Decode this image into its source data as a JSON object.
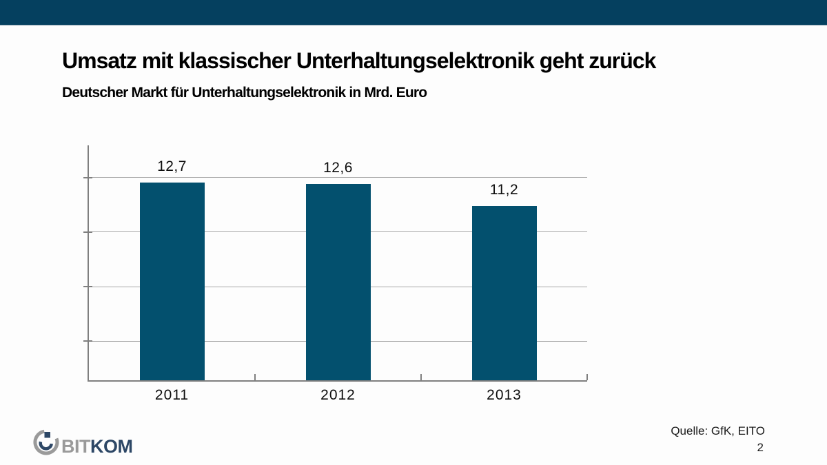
{
  "slide": {
    "title": "Umsatz mit klassischer Unterhaltungselektronik geht zurück",
    "subtitle": "Deutscher Markt für Unterhaltungselektronik in Mrd. Euro",
    "source_label": "Quelle: GfK, EITO",
    "page_number": "2"
  },
  "header": {
    "bar_color": "#05405f"
  },
  "logo": {
    "text_gray": "BIT",
    "text_blue": "KOM",
    "gray_color": "#9a9a9a",
    "blue_color": "#2d4766"
  },
  "chart_data": {
    "type": "bar",
    "title": "Deutscher Markt für Unterhaltungselektronik in Mrd. Euro",
    "categories": [
      "2011",
      "2012",
      "2013"
    ],
    "values": [
      12.7,
      12.6,
      11.2
    ],
    "value_labels": [
      "12,7",
      "12,6",
      "11,2"
    ],
    "unit": "Mrd. Euro",
    "xlabel": "",
    "ylabel": "",
    "ylim": [
      0,
      15.1
    ],
    "gridline_values": [
      2.5,
      6,
      9.5,
      13
    ],
    "grid_on": true,
    "legend_position": "none",
    "bar_color": "#03506e",
    "grid_color": "#a6a6a6",
    "axis_color": "#7f7f7f"
  }
}
